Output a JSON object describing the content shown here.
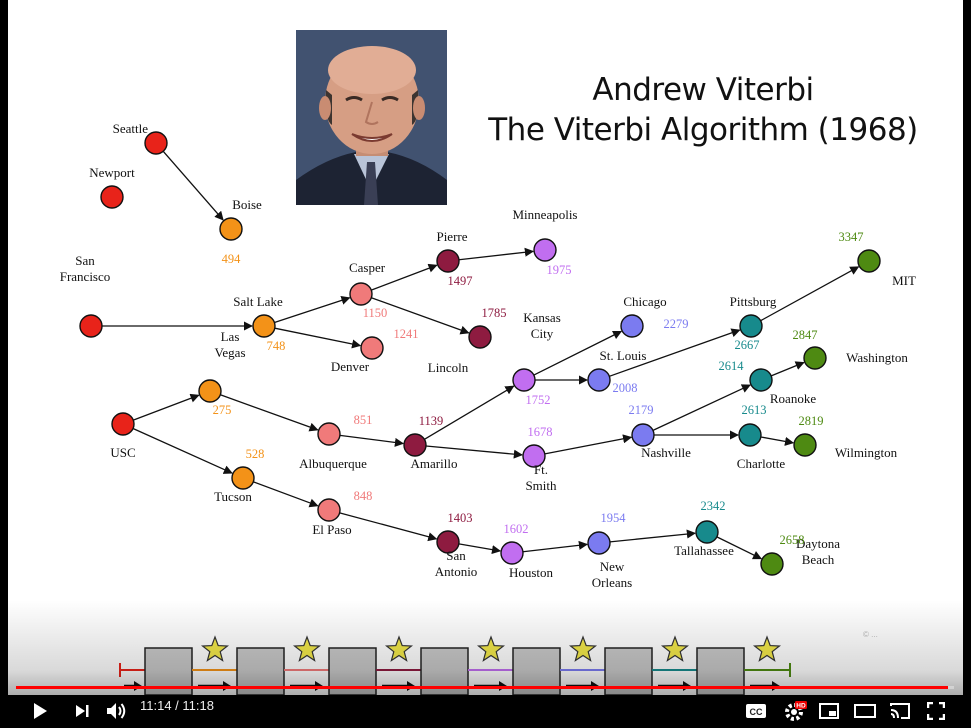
{
  "title": {
    "line1": "Andrew Viterbi",
    "line2": "The Viterbi Algorithm (1968)"
  },
  "photo": {
    "subject": "portrait of Andrew Viterbi"
  },
  "graph": {
    "nodes": [
      {
        "id": "seattle",
        "label": "Seattle",
        "color": "#e8231a"
      },
      {
        "id": "newport",
        "label": "Newport",
        "color": "#e8231a"
      },
      {
        "id": "boise",
        "label": "Boise",
        "color": "#f39218",
        "dist": "494"
      },
      {
        "id": "sanfrancisco",
        "label": "San\nFrancisco",
        "color": "#e8231a"
      },
      {
        "id": "saltlake",
        "label": "Salt Lake",
        "color": "#f39218",
        "dist": "748"
      },
      {
        "id": "casper",
        "label": "Casper",
        "color": "#f07a7a",
        "dist": "1150"
      },
      {
        "id": "denver",
        "label": "Denver",
        "color": "#f07a7a",
        "dist": "1241"
      },
      {
        "id": "pierre",
        "label": "Pierre",
        "color": "#8e1b40",
        "dist": "1497"
      },
      {
        "id": "lincoln",
        "label": "Lincoln",
        "color": "#8e1b40",
        "dist": "1785"
      },
      {
        "id": "minneapolis",
        "label": "Minneapolis",
        "color": "#c16ef0",
        "dist": "1975"
      },
      {
        "id": "usc",
        "label": "USC",
        "color": "#e8231a"
      },
      {
        "id": "lasvegas",
        "label": "Las\nVegas",
        "color": "#f39218",
        "dist": "275"
      },
      {
        "id": "tucson",
        "label": "Tucson",
        "color": "#f39218",
        "dist": "528"
      },
      {
        "id": "albuquerque",
        "label": "Albuquerque",
        "color": "#f07a7a",
        "dist": "851"
      },
      {
        "id": "elpaso",
        "label": "El Paso",
        "color": "#f07a7a",
        "dist": "848"
      },
      {
        "id": "amarillo",
        "label": "Amarillo",
        "color": "#8e1b40",
        "dist": "1139"
      },
      {
        "id": "sanantonio",
        "label": "San\nAntonio",
        "color": "#8e1b40",
        "dist": "1403"
      },
      {
        "id": "kansascity",
        "label": "Kansas\nCity",
        "color": "#c16ef0",
        "dist": "1752"
      },
      {
        "id": "ftsmith",
        "label": "Ft.\nSmith",
        "color": "#c16ef0",
        "dist": "1678"
      },
      {
        "id": "houston",
        "label": "Houston",
        "color": "#c16ef0",
        "dist": "1602"
      },
      {
        "id": "chicago",
        "label": "Chicago",
        "color": "#7b7bf0",
        "dist": "2279"
      },
      {
        "id": "stlouis",
        "label": "St. Louis",
        "color": "#7b7bf0",
        "dist": "2008"
      },
      {
        "id": "nashville",
        "label": "Nashville",
        "color": "#7b7bf0",
        "dist": "2179"
      },
      {
        "id": "neworleans",
        "label": "New\nOrleans",
        "color": "#7b7bf0",
        "dist": "1954"
      },
      {
        "id": "pittsburg",
        "label": "Pittsburg",
        "color": "#178a8c",
        "dist": "2667"
      },
      {
        "id": "roanoke",
        "label": "Roanoke",
        "color": "#178a8c",
        "dist": "2614"
      },
      {
        "id": "charlotte",
        "label": "Charlotte",
        "color": "#178a8c",
        "dist": "2613"
      },
      {
        "id": "tallahassee",
        "label": "Tallahassee",
        "color": "#178a8c",
        "dist": "2342"
      },
      {
        "id": "mit",
        "label": "MIT",
        "color": "#4e8a12",
        "dist": "3347"
      },
      {
        "id": "washington",
        "label": "Washington",
        "color": "#4e8a12",
        "dist": "2847"
      },
      {
        "id": "wilmington",
        "label": "Wilmington",
        "color": "#4e8a12",
        "dist": "2819"
      },
      {
        "id": "daytonabeach",
        "label": "Daytona\nBeach",
        "color": "#4e8a12",
        "dist": "2658"
      }
    ],
    "edges": [
      [
        "seattle",
        "boise"
      ],
      [
        "sanfrancisco",
        "saltlake"
      ],
      [
        "saltlake",
        "casper"
      ],
      [
        "saltlake",
        "denver"
      ],
      [
        "casper",
        "pierre"
      ],
      [
        "casper",
        "lincoln"
      ],
      [
        "pierre",
        "minneapolis"
      ],
      [
        "usc",
        "lasvegas"
      ],
      [
        "usc",
        "tucson"
      ],
      [
        "lasvegas",
        "albuquerque"
      ],
      [
        "tucson",
        "elpaso"
      ],
      [
        "albuquerque",
        "amarillo"
      ],
      [
        "elpaso",
        "sanantonio"
      ],
      [
        "amarillo",
        "kansascity"
      ],
      [
        "amarillo",
        "ftsmith"
      ],
      [
        "sanantonio",
        "houston"
      ],
      [
        "kansascity",
        "chicago"
      ],
      [
        "kansascity",
        "stlouis"
      ],
      [
        "ftsmith",
        "nashville"
      ],
      [
        "houston",
        "neworleans"
      ],
      [
        "stlouis",
        "pittsburg"
      ],
      [
        "nashville",
        "roanoke"
      ],
      [
        "nashville",
        "charlotte"
      ],
      [
        "neworleans",
        "tallahassee"
      ],
      [
        "pittsburg",
        "mit"
      ],
      [
        "roanoke",
        "washington"
      ],
      [
        "charlotte",
        "wilmington"
      ],
      [
        "tallahassee",
        "daytonabeach"
      ]
    ]
  },
  "pipeline": {
    "stage_count": 7,
    "star_count": 7,
    "segment_colors": [
      "#f39218",
      "#f07a7a",
      "#8e1b40",
      "#c16ef0",
      "#7b7bf0",
      "#178a8c",
      "#4e8a12"
    ],
    "start_color": "#e8231a",
    "end_color": "#4e8a12"
  },
  "watermark": "© ...",
  "player": {
    "current_time": "11:14",
    "duration": "11:18",
    "time_text": "11:14 / 11:18",
    "progress_fraction": 0.994,
    "hd_badge": "HD",
    "icons": [
      "play-icon",
      "next-icon",
      "volume-icon",
      "cc-icon",
      "settings-icon",
      "miniplayer-icon",
      "theater-icon",
      "cast-icon",
      "fullscreen-icon"
    ]
  }
}
